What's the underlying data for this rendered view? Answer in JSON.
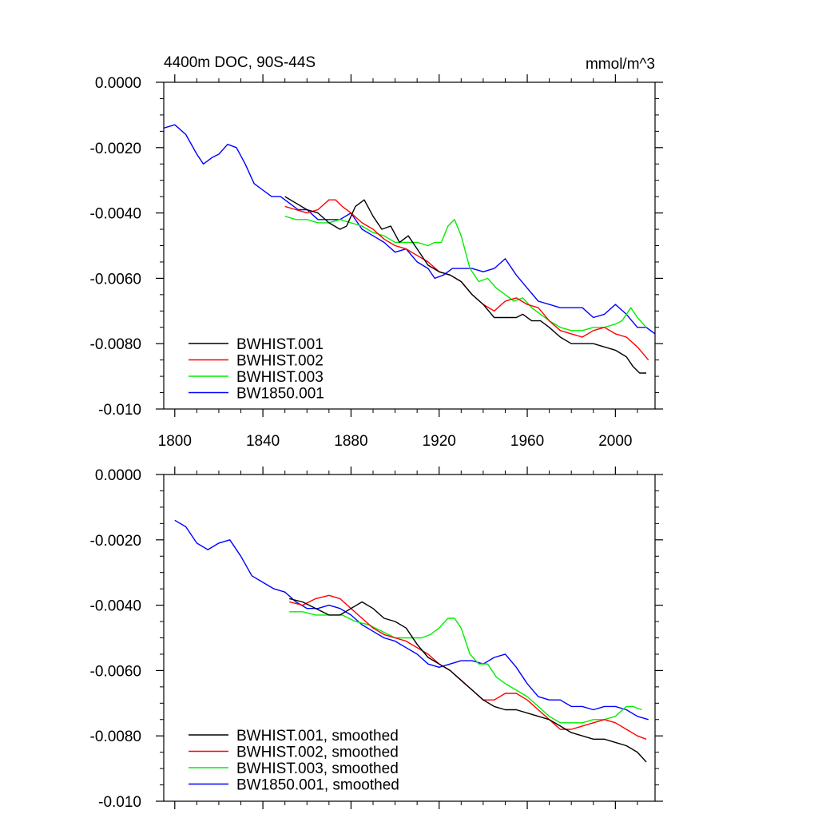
{
  "figure": {
    "title_left": "4400m DOC, 90S-44S",
    "title_right": "mmol/m^3"
  },
  "chart_data": [
    {
      "type": "line",
      "title": "4400m DOC, 90S-44S",
      "units": "mmol/m^3",
      "xlabel": "",
      "ylabel": "",
      "xlim": [
        1795,
        2018
      ],
      "ylim": [
        -0.01,
        0.0
      ],
      "x_ticks": [
        1800,
        1840,
        1880,
        1920,
        1960,
        2000
      ],
      "x_tick_labels": [
        "1800",
        "1840",
        "1880",
        "1920",
        "1960",
        "2000"
      ],
      "y_ticks": [
        0.0,
        -0.002,
        -0.004,
        -0.006,
        -0.008,
        -0.01
      ],
      "y_tick_labels": [
        "0.0000",
        "-0.0020",
        "-0.0040",
        "-0.0060",
        "-0.0080",
        "-0.010"
      ],
      "legend_position": "bottom-left",
      "series": [
        {
          "name": "BWHIST.001",
          "color": "#000000",
          "x": [
            1850,
            1855,
            1860,
            1865,
            1870,
            1875,
            1878,
            1882,
            1886,
            1890,
            1894,
            1898,
            1902,
            1906,
            1910,
            1915,
            1920,
            1925,
            1930,
            1935,
            1940,
            1945,
            1950,
            1955,
            1958,
            1962,
            1966,
            1970,
            1975,
            1980,
            1985,
            1990,
            1995,
            2000,
            2005,
            2008,
            2011,
            2014
          ],
          "y": [
            -0.0035,
            -0.0037,
            -0.0039,
            -0.004,
            -0.0043,
            -0.0045,
            -0.0044,
            -0.0038,
            -0.0036,
            -0.0041,
            -0.0045,
            -0.0044,
            -0.0049,
            -0.0047,
            -0.0051,
            -0.0056,
            -0.0058,
            -0.0059,
            -0.0061,
            -0.0065,
            -0.0068,
            -0.0072,
            -0.0072,
            -0.0072,
            -0.0071,
            -0.0073,
            -0.0073,
            -0.0075,
            -0.0078,
            -0.008,
            -0.008,
            -0.008,
            -0.0081,
            -0.0082,
            -0.0084,
            -0.0087,
            -0.0089,
            -0.0089
          ]
        },
        {
          "name": "BWHIST.002",
          "color": "#ff0000",
          "x": [
            1850,
            1855,
            1860,
            1865,
            1870,
            1873,
            1876,
            1880,
            1885,
            1890,
            1895,
            1900,
            1905,
            1910,
            1915,
            1920,
            1925,
            1930,
            1935,
            1940,
            1945,
            1950,
            1955,
            1960,
            1965,
            1970,
            1975,
            1980,
            1985,
            1990,
            1995,
            2000,
            2005,
            2010,
            2015
          ],
          "y": [
            -0.0038,
            -0.0039,
            -0.004,
            -0.0039,
            -0.0036,
            -0.0036,
            -0.0038,
            -0.004,
            -0.0043,
            -0.0045,
            -0.0048,
            -0.005,
            -0.0051,
            -0.0053,
            -0.0055,
            -0.0058,
            -0.0059,
            -0.0061,
            -0.0065,
            -0.0068,
            -0.007,
            -0.0067,
            -0.0066,
            -0.0068,
            -0.0069,
            -0.0073,
            -0.0076,
            -0.0077,
            -0.0078,
            -0.0076,
            -0.0075,
            -0.0077,
            -0.0078,
            -0.0081,
            -0.0085
          ]
        },
        {
          "name": "BWHIST.003",
          "color": "#00ee00",
          "x": [
            1850,
            1855,
            1860,
            1865,
            1870,
            1875,
            1880,
            1885,
            1890,
            1895,
            1900,
            1905,
            1910,
            1915,
            1918,
            1921,
            1924,
            1927,
            1930,
            1934,
            1938,
            1942,
            1946,
            1950,
            1954,
            1958,
            1962,
            1966,
            1970,
            1975,
            1980,
            1985,
            1990,
            1995,
            2000,
            2003,
            2007,
            2010,
            2014
          ],
          "y": [
            -0.0041,
            -0.0042,
            -0.0042,
            -0.0043,
            -0.0043,
            -0.0042,
            -0.0043,
            -0.0044,
            -0.0046,
            -0.0047,
            -0.0049,
            -0.0049,
            -0.0049,
            -0.005,
            -0.0049,
            -0.0049,
            -0.0044,
            -0.0042,
            -0.0047,
            -0.0057,
            -0.0061,
            -0.006,
            -0.0063,
            -0.0065,
            -0.0067,
            -0.0066,
            -0.0069,
            -0.0071,
            -0.0073,
            -0.0075,
            -0.0076,
            -0.0076,
            -0.0075,
            -0.0075,
            -0.0074,
            -0.0073,
            -0.0069,
            -0.0072,
            -0.0075
          ]
        },
        {
          "name": "BW1850.001",
          "color": "#0000ff",
          "x": [
            1795,
            1800,
            1805,
            1810,
            1813,
            1817,
            1820,
            1824,
            1828,
            1832,
            1836,
            1840,
            1844,
            1848,
            1852,
            1856,
            1860,
            1865,
            1870,
            1875,
            1880,
            1885,
            1890,
            1895,
            1900,
            1905,
            1910,
            1915,
            1918,
            1922,
            1926,
            1930,
            1935,
            1940,
            1945,
            1950,
            1955,
            1960,
            1965,
            1970,
            1975,
            1980,
            1985,
            1990,
            1995,
            2000,
            2005,
            2010,
            2014,
            2018
          ],
          "y": [
            -0.0014,
            -0.0013,
            -0.0016,
            -0.0022,
            -0.0025,
            -0.0023,
            -0.0022,
            -0.0019,
            -0.002,
            -0.0025,
            -0.0031,
            -0.0033,
            -0.0035,
            -0.0035,
            -0.0037,
            -0.0039,
            -0.0039,
            -0.0042,
            -0.0042,
            -0.0042,
            -0.004,
            -0.0045,
            -0.0047,
            -0.0049,
            -0.0052,
            -0.0051,
            -0.0055,
            -0.0057,
            -0.006,
            -0.0059,
            -0.0057,
            -0.0057,
            -0.0057,
            -0.0058,
            -0.0057,
            -0.0054,
            -0.0059,
            -0.0063,
            -0.0067,
            -0.0068,
            -0.0069,
            -0.0069,
            -0.0069,
            -0.0072,
            -0.0071,
            -0.0068,
            -0.0071,
            -0.0075,
            -0.0075,
            -0.0077
          ]
        }
      ]
    },
    {
      "type": "line",
      "title": "",
      "xlabel": "",
      "ylabel": "",
      "xlim": [
        1795,
        2018
      ],
      "ylim": [
        -0.01,
        0.0
      ],
      "x_ticks": [
        1800,
        1840,
        1880,
        1920,
        1960,
        2000
      ],
      "x_tick_labels": [],
      "y_ticks": [
        0.0,
        -0.002,
        -0.004,
        -0.006,
        -0.008,
        -0.01
      ],
      "y_tick_labels": [
        "0.0000",
        "-0.0020",
        "-0.0040",
        "-0.0060",
        "-0.0080",
        "-0.010"
      ],
      "legend_position": "bottom-left",
      "series": [
        {
          "name": "BWHIST.001, smoothed",
          "color": "#000000",
          "x": [
            1852,
            1858,
            1864,
            1870,
            1875,
            1880,
            1885,
            1890,
            1895,
            1900,
            1905,
            1910,
            1915,
            1920,
            1925,
            1930,
            1935,
            1940,
            1945,
            1950,
            1955,
            1960,
            1965,
            1970,
            1975,
            1980,
            1985,
            1990,
            1995,
            2000,
            2005,
            2010,
            2014
          ],
          "y": [
            -0.0038,
            -0.0039,
            -0.0041,
            -0.0043,
            -0.0043,
            -0.0041,
            -0.0039,
            -0.0041,
            -0.0044,
            -0.0045,
            -0.0047,
            -0.0052,
            -0.0056,
            -0.0058,
            -0.006,
            -0.0063,
            -0.0066,
            -0.0069,
            -0.0071,
            -0.0072,
            -0.0072,
            -0.0073,
            -0.0074,
            -0.0075,
            -0.0077,
            -0.0079,
            -0.008,
            -0.0081,
            -0.0081,
            -0.0082,
            -0.0083,
            -0.0085,
            -0.0088
          ]
        },
        {
          "name": "BWHIST.002, smoothed",
          "color": "#ff0000",
          "x": [
            1852,
            1858,
            1864,
            1870,
            1875,
            1880,
            1885,
            1890,
            1895,
            1900,
            1905,
            1910,
            1915,
            1920,
            1925,
            1930,
            1935,
            1940,
            1945,
            1950,
            1955,
            1960,
            1965,
            1970,
            1975,
            1980,
            1985,
            1990,
            1995,
            2000,
            2005,
            2010,
            2014
          ],
          "y": [
            -0.0039,
            -0.004,
            -0.0038,
            -0.0037,
            -0.0038,
            -0.0041,
            -0.0044,
            -0.0047,
            -0.0049,
            -0.005,
            -0.0051,
            -0.0053,
            -0.0055,
            -0.0058,
            -0.006,
            -0.0063,
            -0.0066,
            -0.0069,
            -0.0069,
            -0.0067,
            -0.0067,
            -0.0069,
            -0.0072,
            -0.0075,
            -0.0078,
            -0.0078,
            -0.0077,
            -0.0076,
            -0.0075,
            -0.0076,
            -0.0078,
            -0.008,
            -0.0081
          ]
        },
        {
          "name": "BWHIST.003, smoothed",
          "color": "#00ee00",
          "x": [
            1852,
            1858,
            1864,
            1870,
            1876,
            1882,
            1888,
            1894,
            1900,
            1906,
            1912,
            1916,
            1920,
            1924,
            1927,
            1930,
            1934,
            1938,
            1942,
            1946,
            1950,
            1955,
            1960,
            1965,
            1970,
            1975,
            1980,
            1985,
            1990,
            1995,
            2000,
            2005,
            2008,
            2012
          ],
          "y": [
            -0.0042,
            -0.0042,
            -0.0043,
            -0.0043,
            -0.0043,
            -0.0045,
            -0.0046,
            -0.0048,
            -0.005,
            -0.005,
            -0.005,
            -0.0049,
            -0.0047,
            -0.0044,
            -0.0044,
            -0.0047,
            -0.0055,
            -0.0058,
            -0.0058,
            -0.0062,
            -0.0064,
            -0.0066,
            -0.0068,
            -0.0071,
            -0.0074,
            -0.0076,
            -0.0076,
            -0.0076,
            -0.0075,
            -0.0075,
            -0.0074,
            -0.0071,
            -0.0071,
            -0.0072
          ]
        },
        {
          "name": "BW1850.001, smoothed",
          "color": "#0000ff",
          "x": [
            1800,
            1805,
            1810,
            1815,
            1820,
            1825,
            1830,
            1835,
            1840,
            1845,
            1850,
            1855,
            1860,
            1865,
            1870,
            1875,
            1880,
            1885,
            1890,
            1895,
            1900,
            1905,
            1910,
            1915,
            1920,
            1925,
            1930,
            1935,
            1940,
            1945,
            1950,
            1955,
            1960,
            1965,
            1970,
            1975,
            1980,
            1985,
            1990,
            1995,
            2000,
            2005,
            2010,
            2015
          ],
          "y": [
            -0.0014,
            -0.0016,
            -0.0021,
            -0.0023,
            -0.0021,
            -0.002,
            -0.0025,
            -0.0031,
            -0.0033,
            -0.0035,
            -0.0036,
            -0.0039,
            -0.0041,
            -0.0041,
            -0.004,
            -0.0041,
            -0.0043,
            -0.0046,
            -0.0048,
            -0.005,
            -0.0051,
            -0.0053,
            -0.0055,
            -0.0058,
            -0.0059,
            -0.0058,
            -0.0057,
            -0.0057,
            -0.0058,
            -0.0056,
            -0.0055,
            -0.0059,
            -0.0064,
            -0.0068,
            -0.0069,
            -0.0069,
            -0.0071,
            -0.0071,
            -0.0072,
            -0.0071,
            -0.0071,
            -0.0072,
            -0.0074,
            -0.0075
          ]
        }
      ]
    }
  ]
}
